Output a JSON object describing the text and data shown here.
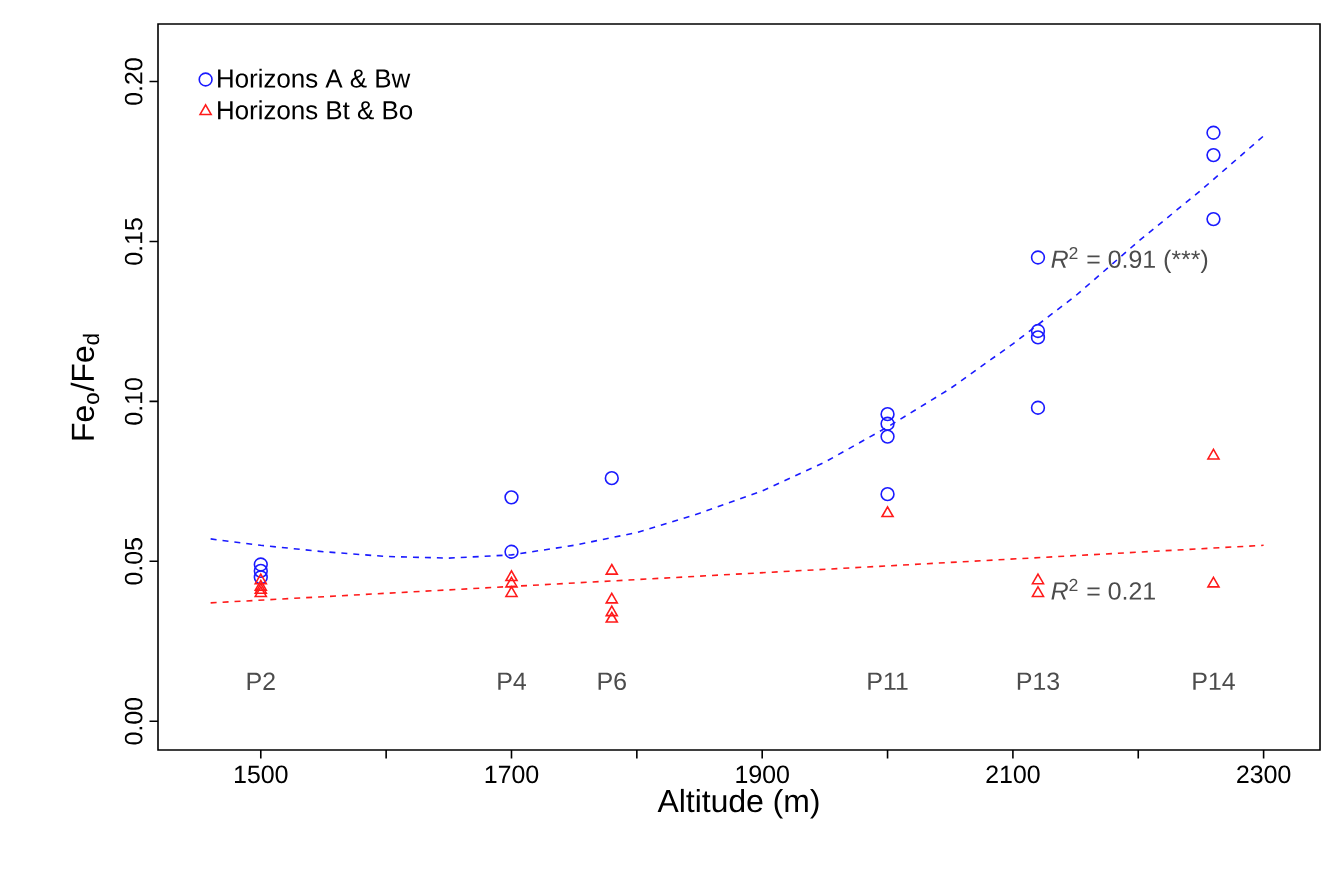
{
  "chart_data": {
    "type": "scatter",
    "xlabel": "Altitude (m)",
    "ylabel": "Fe$_{o}$/Fe$_{d}$",
    "xlim": [
      1418,
      2345
    ],
    "ylim": [
      -0.009,
      0.218
    ],
    "xticks": [
      1500,
      {
        "value": 1600,
        "label": null
      },
      1700,
      {
        "value": 1800,
        "label": null
      },
      1900,
      {
        "value": 2000,
        "label": null
      },
      2100,
      {
        "value": 2200,
        "label": null
      },
      2300
    ],
    "yticks": [
      {
        "value": 0,
        "label": "0.00"
      },
      {
        "value": 0.05,
        "label": "0.05"
      },
      {
        "value": 0.1,
        "label": "0.10"
      },
      {
        "value": 0.15,
        "label": "0.15"
      },
      {
        "value": 0.2,
        "label": "0.20"
      }
    ],
    "grid": false,
    "legend": "top left",
    "series": [
      {
        "name": "Horizons A & Bw",
        "marker": "circle",
        "color": "#1a1aff",
        "x": [
          1500,
          1500,
          1500,
          1700,
          1700,
          1780,
          2000,
          2000,
          2000,
          2000,
          2120,
          2120,
          2120,
          2120,
          2260,
          2260,
          2260
        ],
        "values": [
          0.049,
          0.047,
          0.045,
          0.07,
          0.053,
          0.076,
          0.096,
          0.093,
          0.089,
          0.071,
          0.145,
          0.122,
          0.12,
          0.098,
          0.184,
          0.177,
          0.157
        ]
      },
      {
        "name": "Horizons Bt & Bo",
        "marker": "triangle",
        "color": "#ff1a1a",
        "x": [
          1500,
          1500,
          1500,
          1500,
          1700,
          1700,
          1700,
          1780,
          1780,
          1780,
          1780,
          2000,
          2120,
          2120,
          2260,
          2260
        ],
        "values": [
          0.044,
          0.042,
          0.041,
          0.04,
          0.045,
          0.043,
          0.04,
          0.047,
          0.038,
          0.034,
          0.032,
          0.065,
          0.044,
          0.04,
          0.083,
          0.043
        ]
      },
      {
        "type": "line",
        "line_style": "dashed",
        "color": "#1a1aff",
        "x": [
          1460,
          1500,
          1550,
          1600,
          1650,
          1700,
          1750,
          1800,
          1850,
          1900,
          1950,
          2000,
          2050,
          2100,
          2150,
          2200,
          2250,
          2300
        ],
        "values": [
          0.057,
          0.055,
          0.053,
          0.0515,
          0.051,
          0.052,
          0.055,
          0.059,
          0.065,
          0.072,
          0.081,
          0.092,
          0.104,
          0.118,
          0.133,
          0.15,
          0.166,
          0.183
        ]
      },
      {
        "type": "line",
        "line_style": "dashed",
        "color": "#ff1a1a",
        "x": [
          1460,
          2300
        ],
        "values": [
          0.037,
          0.055
        ]
      }
    ],
    "annotations": [
      "P2",
      "P4",
      "P6",
      "P11",
      "P13",
      "P14",
      "*R*$^{2}$ = 0.91 (***)",
      "*R*$^{2}$ = 0.21"
    ]
  }
}
